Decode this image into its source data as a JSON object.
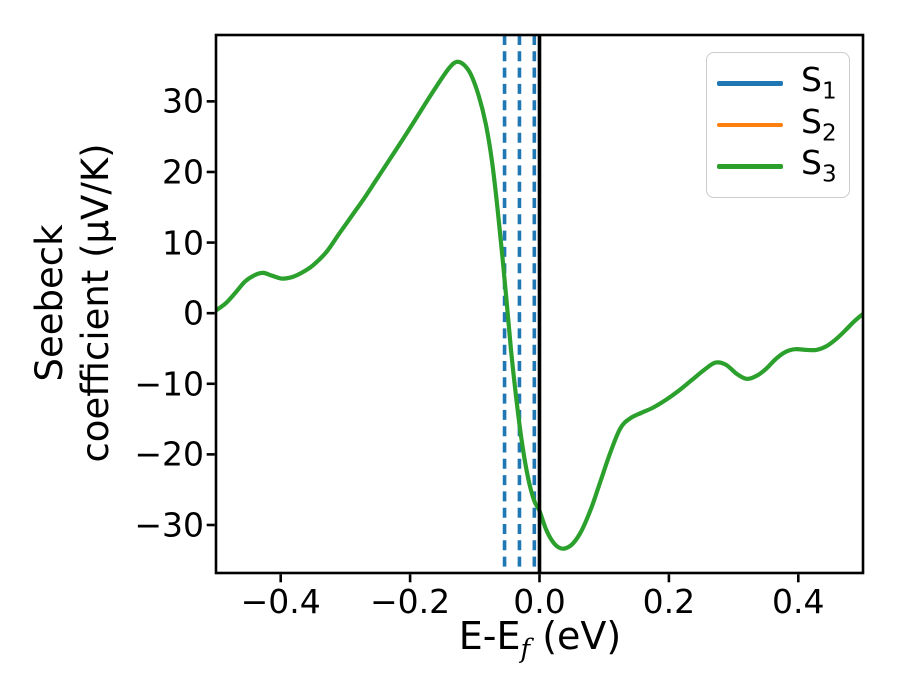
{
  "figure": {
    "background": "#ffffff"
  },
  "chart_data": {
    "type": "line",
    "xlabel": {
      "main": "E-E",
      "sub": "f",
      "rest": " (eV)"
    },
    "ylabel_lines": [
      "Seebeck",
      "coefficient  (μV/K)"
    ],
    "xlim": [
      -0.5,
      0.5
    ],
    "ylim": [
      -36.8,
      39.4
    ],
    "grid": false,
    "xticks": {
      "values": [
        -0.4,
        -0.2,
        0.0,
        0.2,
        0.4
      ],
      "labels": [
        "−0.4",
        "−0.2",
        "0.0",
        "0.2",
        "0.4"
      ]
    },
    "yticks": {
      "values": [
        30,
        20,
        10,
        0,
        -10,
        -20,
        -30
      ],
      "labels": [
        "30",
        "20",
        "10",
        "0",
        "−10",
        "−20",
        "−30"
      ]
    },
    "legend": {
      "position": "upper right",
      "entries": [
        {
          "label": "S",
          "sub": "1",
          "color": "#1f77b4"
        },
        {
          "label": "S",
          "sub": "2",
          "color": "#ff7f0e"
        },
        {
          "label": "S",
          "sub": "3",
          "color": "#2ca02c"
        }
      ]
    },
    "vlines": [
      {
        "x": -0.054,
        "color": "#1f77b4",
        "style": "dashed"
      },
      {
        "x": -0.031,
        "color": "#1f77b4",
        "style": "dashed"
      },
      {
        "x": -0.008,
        "color": "#1f77b4",
        "style": "dashed"
      },
      {
        "x": 0.0,
        "color": "#000000",
        "style": "solid"
      }
    ],
    "series": [
      {
        "name": "S3",
        "color": "#2ca02c",
        "points": [
          [
            -0.5,
            0.4
          ],
          [
            -0.485,
            1.4
          ],
          [
            -0.47,
            2.9
          ],
          [
            -0.455,
            4.5
          ],
          [
            -0.44,
            5.4
          ],
          [
            -0.427,
            5.7
          ],
          [
            -0.413,
            5.3
          ],
          [
            -0.398,
            4.9
          ],
          [
            -0.383,
            5.1
          ],
          [
            -0.368,
            5.7
          ],
          [
            -0.35,
            6.8
          ],
          [
            -0.33,
            8.6
          ],
          [
            -0.31,
            11.2
          ],
          [
            -0.29,
            13.8
          ],
          [
            -0.27,
            16.4
          ],
          [
            -0.25,
            19.2
          ],
          [
            -0.23,
            22.0
          ],
          [
            -0.21,
            24.8
          ],
          [
            -0.19,
            27.7
          ],
          [
            -0.17,
            30.6
          ],
          [
            -0.15,
            33.4
          ],
          [
            -0.138,
            34.9
          ],
          [
            -0.128,
            35.6
          ],
          [
            -0.117,
            35.2
          ],
          [
            -0.106,
            33.8
          ],
          [
            -0.094,
            30.8
          ],
          [
            -0.083,
            26.8
          ],
          [
            -0.073,
            21.2
          ],
          [
            -0.063,
            13.2
          ],
          [
            -0.053,
            3.8
          ],
          [
            -0.044,
            -5.2
          ],
          [
            -0.035,
            -12.8
          ],
          [
            -0.026,
            -19.0
          ],
          [
            -0.017,
            -23.6
          ],
          [
            -0.008,
            -26.6
          ],
          [
            0.0,
            -28.0
          ],
          [
            0.01,
            -30.6
          ],
          [
            0.02,
            -32.3
          ],
          [
            0.03,
            -33.2
          ],
          [
            0.04,
            -33.3
          ],
          [
            0.052,
            -32.6
          ],
          [
            0.065,
            -30.8
          ],
          [
            0.08,
            -27.6
          ],
          [
            0.095,
            -23.6
          ],
          [
            0.11,
            -19.6
          ],
          [
            0.125,
            -16.3
          ],
          [
            0.14,
            -14.9
          ],
          [
            0.158,
            -14.1
          ],
          [
            0.175,
            -13.4
          ],
          [
            0.195,
            -12.3
          ],
          [
            0.215,
            -11.0
          ],
          [
            0.235,
            -9.5
          ],
          [
            0.255,
            -8.0
          ],
          [
            0.272,
            -7.0
          ],
          [
            0.288,
            -7.3
          ],
          [
            0.305,
            -8.6
          ],
          [
            0.32,
            -9.3
          ],
          [
            0.335,
            -8.9
          ],
          [
            0.35,
            -7.9
          ],
          [
            0.365,
            -6.5
          ],
          [
            0.38,
            -5.5
          ],
          [
            0.395,
            -5.1
          ],
          [
            0.412,
            -5.2
          ],
          [
            0.428,
            -5.2
          ],
          [
            0.443,
            -4.7
          ],
          [
            0.458,
            -3.7
          ],
          [
            0.472,
            -2.5
          ],
          [
            0.486,
            -1.2
          ],
          [
            0.5,
            -0.1
          ]
        ]
      }
    ]
  }
}
